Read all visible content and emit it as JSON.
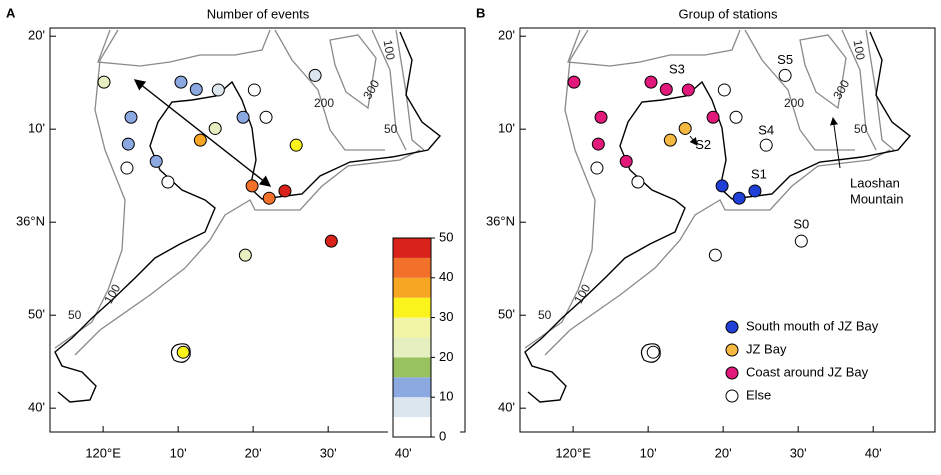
{
  "panels": [
    {
      "letter": "A",
      "title": "Number of events"
    },
    {
      "letter": "B",
      "title": "Group of stations"
    }
  ],
  "lonlim": [
    119.882,
    120.804
  ],
  "latlim": [
    35.624,
    36.348
  ],
  "lon_ticks": [
    {
      "value": 120,
      "label": "120°E"
    },
    {
      "value": 120.1667,
      "label": "10'"
    },
    {
      "value": 120.3333,
      "label": "20'"
    },
    {
      "value": 120.5,
      "label": "30'"
    },
    {
      "value": 120.6667,
      "label": "40'"
    }
  ],
  "lat_ticks": [
    {
      "value": 36.3333,
      "label": "20'"
    },
    {
      "value": 36.1667,
      "label": "10'"
    },
    {
      "value": 36,
      "label": "36°N"
    },
    {
      "value": 35.8333,
      "label": "50'"
    },
    {
      "value": 35.6667,
      "label": "40'"
    }
  ],
  "contour_labels": [
    "50",
    "100",
    "200",
    "300"
  ],
  "colorbar": {
    "bins": [
      0,
      5,
      10,
      15,
      20,
      25,
      30,
      35,
      40,
      45,
      50
    ],
    "colors": [
      "#ffffff",
      "#dce6ee",
      "#8ca8e0",
      "#98c25f",
      "#e5efc0",
      "#f2f5a6",
      "#fbf41c",
      "#f6a623",
      "#f2712a",
      "#d8221a"
    ],
    "ticks": [
      0,
      10,
      20,
      30,
      40,
      50
    ]
  },
  "groups": [
    {
      "name": "South mouth of JZ Bay",
      "color": "#1f3fd6"
    },
    {
      "name": "JZ Bay",
      "color": "#f5b942"
    },
    {
      "name": "Coast around JZ Bay",
      "color": "#e0197a"
    },
    {
      "name": "Else",
      "color": "#ffffff"
    }
  ],
  "stations": [
    {
      "lon": 120.002,
      "lat": 36.251,
      "events": 22,
      "group": 2
    },
    {
      "lon": 120.173,
      "lat": 36.251,
      "events": 12,
      "group": 2,
      "label": "S3"
    },
    {
      "lon": 120.207,
      "lat": 36.238,
      "events": 12,
      "group": 2
    },
    {
      "lon": 120.256,
      "lat": 36.237,
      "events": 7,
      "group": 2
    },
    {
      "lon": 120.336,
      "lat": 36.237,
      "events": 3,
      "group": 3
    },
    {
      "lon": 120.471,
      "lat": 36.263,
      "events": 7,
      "group": 3,
      "label": "S5"
    },
    {
      "lon": 120.062,
      "lat": 36.188,
      "events": 12,
      "group": 2
    },
    {
      "lon": 120.216,
      "lat": 36.147,
      "events": 37,
      "group": 1
    },
    {
      "lon": 120.249,
      "lat": 36.168,
      "events": 22,
      "group": 1,
      "label": "S2"
    },
    {
      "lon": 120.311,
      "lat": 36.188,
      "events": 12,
      "group": 2
    },
    {
      "lon": 120.362,
      "lat": 36.188,
      "events": 3,
      "group": 3
    },
    {
      "lon": 120.056,
      "lat": 36.14,
      "events": 12,
      "group": 2
    },
    {
      "lon": 120.429,
      "lat": 36.138,
      "events": 32,
      "group": 3,
      "label": "S4"
    },
    {
      "lon": 120.118,
      "lat": 36.109,
      "events": 12,
      "group": 2
    },
    {
      "lon": 120.053,
      "lat": 36.097,
      "events": 3,
      "group": 3
    },
    {
      "lon": 120.144,
      "lat": 36.072,
      "events": 4,
      "group": 3
    },
    {
      "lon": 120.331,
      "lat": 36.065,
      "events": 44,
      "group": 0
    },
    {
      "lon": 120.369,
      "lat": 36.043,
      "events": 42,
      "group": 0
    },
    {
      "lon": 120.404,
      "lat": 36.056,
      "events": 47,
      "group": 0,
      "label": "S1"
    },
    {
      "lon": 120.507,
      "lat": 35.966,
      "events": 49,
      "group": 3,
      "label": "S0"
    },
    {
      "lon": 120.316,
      "lat": 35.941,
      "events": 22,
      "group": 3
    },
    {
      "lon": 120.178,
      "lat": 35.767,
      "events": 32,
      "group": 3
    }
  ],
  "annotation": [
    "Laoshan",
    "Mountain"
  ]
}
